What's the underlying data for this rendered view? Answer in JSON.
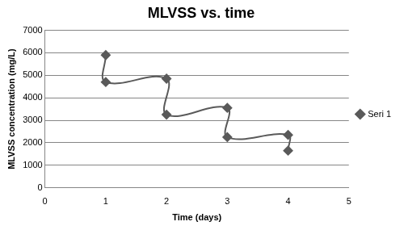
{
  "chart_data": {
    "type": "line",
    "title": "MLVSS vs. time",
    "x_label": "Time (days)",
    "y_label": "MLVSS concentration (mg/L)",
    "x": [
      1,
      1,
      2,
      2,
      3,
      3,
      4,
      4
    ],
    "series": [
      {
        "name": "Seri 1",
        "color": "#5a5a5a",
        "marker": "diamond",
        "line_style": "solid",
        "values": [
          5900,
          4700,
          4850,
          3250,
          3550,
          2250,
          2350,
          1650
        ]
      }
    ],
    "xlim": [
      0,
      5
    ],
    "xticks": [
      0,
      1,
      2,
      3,
      4,
      5
    ],
    "ylim": [
      0,
      7000
    ],
    "yticks": [
      0,
      1000,
      2000,
      3000,
      4000,
      5000,
      6000,
      7000
    ],
    "grid": true,
    "legend": "right"
  }
}
